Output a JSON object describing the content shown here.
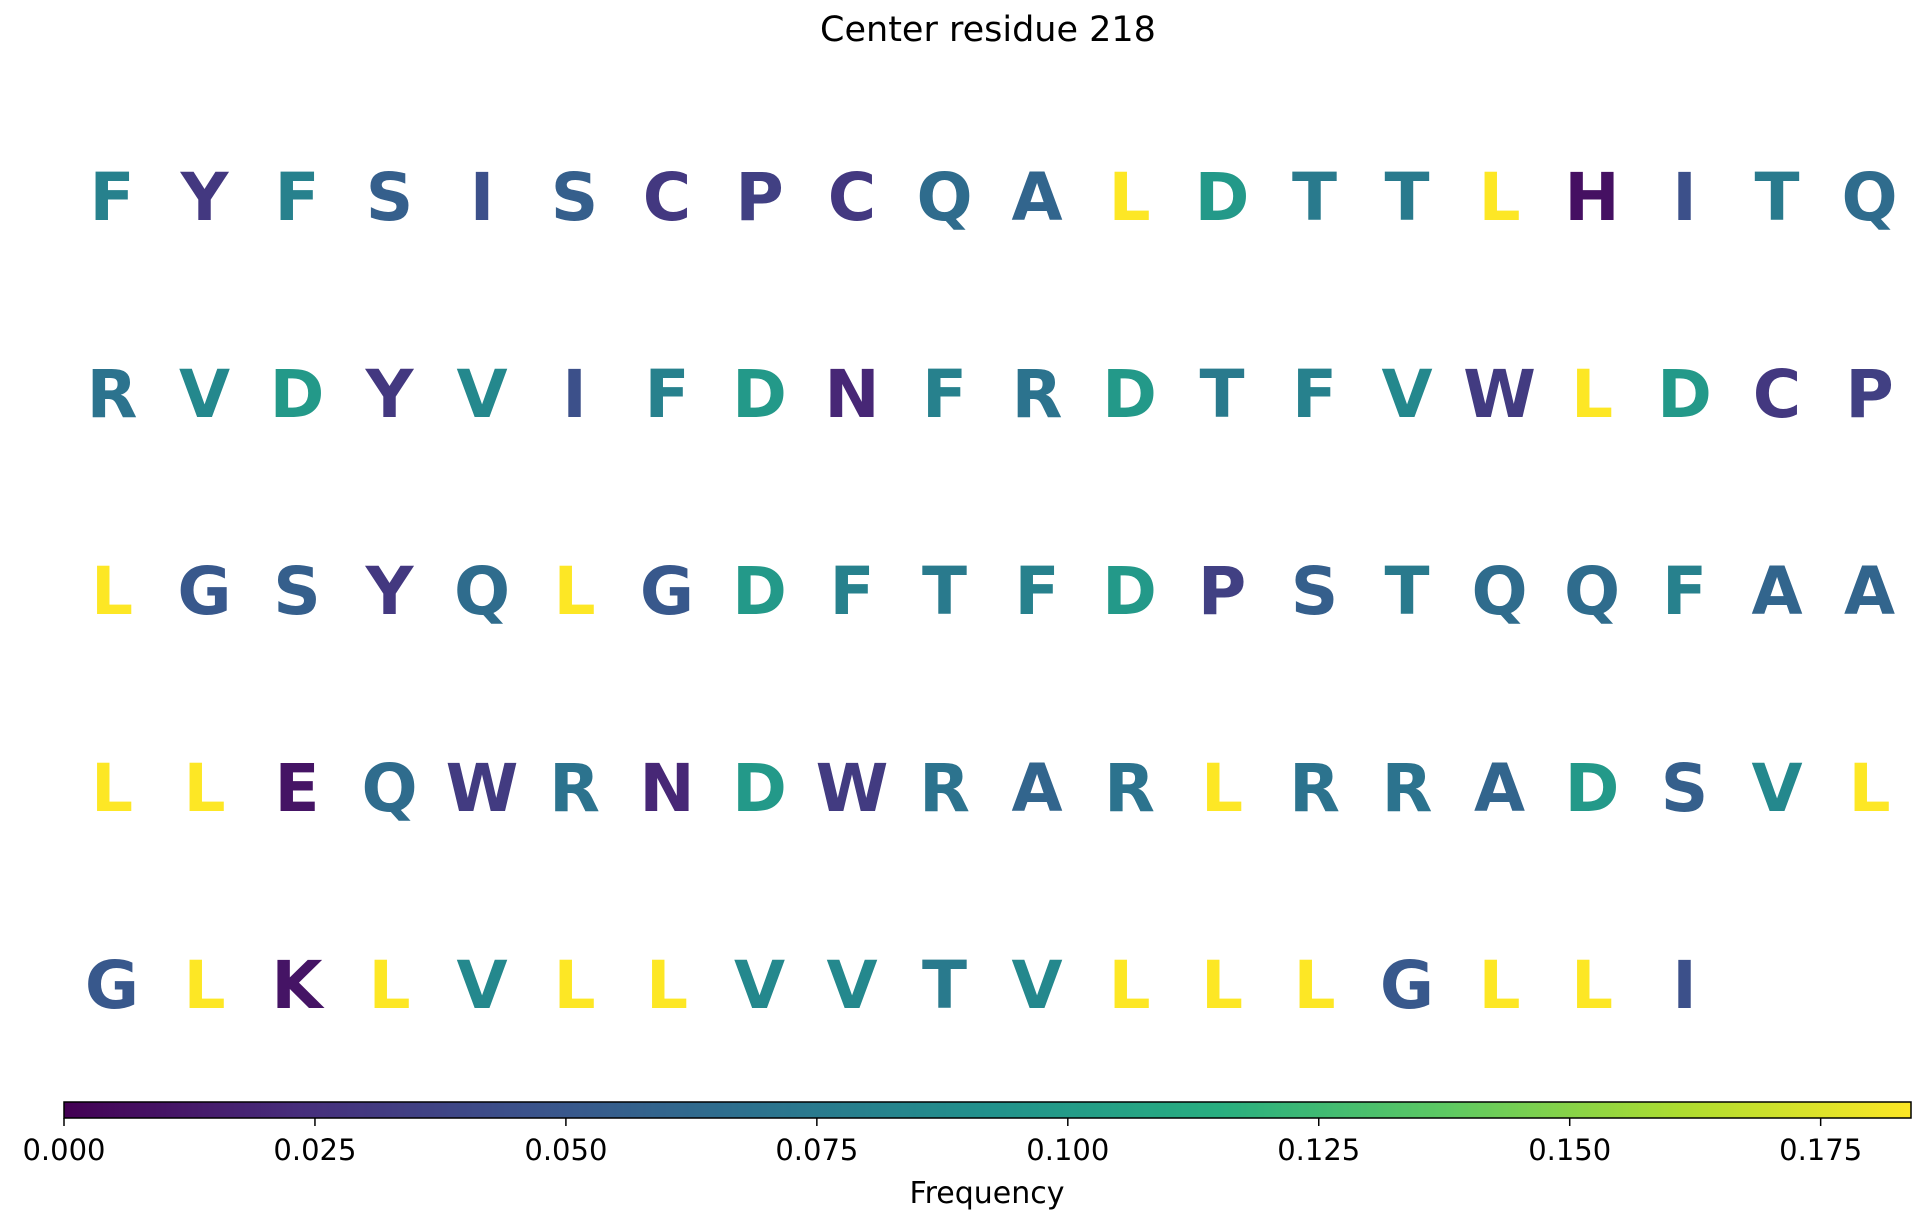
{
  "chart_data": {
    "type": "table",
    "title": "Center residue 218",
    "colormap": "viridis",
    "colorbar": {
      "label": "Frequency",
      "range": [
        0.0,
        0.184
      ],
      "ticks": [
        "0.000",
        "0.025",
        "0.050",
        "0.075",
        "0.100",
        "0.125",
        "0.150",
        "0.175"
      ],
      "tick_values": [
        0.0,
        0.025,
        0.05,
        0.075,
        0.1,
        0.125,
        0.15,
        0.175
      ]
    },
    "residue_frequency": {
      "L": 0.184,
      "D": 0.098,
      "V": 0.085,
      "T": 0.075,
      "F": 0.08,
      "R": 0.07,
      "Q": 0.065,
      "A": 0.06,
      "S": 0.055,
      "G": 0.05,
      "I": 0.045,
      "P": 0.035,
      "W": 0.032,
      "C": 0.03,
      "Y": 0.03,
      "N": 0.02,
      "K": 0.01,
      "E": 0.01,
      "H": 0.008
    },
    "rows": [
      [
        "F",
        "Y",
        "F",
        "S",
        "I",
        "S",
        "C",
        "P",
        "C",
        "Q",
        "A",
        "L",
        "D",
        "T",
        "T",
        "L",
        "H",
        "I",
        "T",
        "Q"
      ],
      [
        "R",
        "V",
        "D",
        "Y",
        "V",
        "I",
        "F",
        "D",
        "N",
        "F",
        "R",
        "D",
        "T",
        "F",
        "V",
        "W",
        "L",
        "D",
        "C",
        "P"
      ],
      [
        "L",
        "G",
        "S",
        "Y",
        "Q",
        "L",
        "G",
        "D",
        "F",
        "T",
        "F",
        "D",
        "P",
        "S",
        "T",
        "Q",
        "Q",
        "F",
        "A",
        "A"
      ],
      [
        "L",
        "L",
        "E",
        "Q",
        "W",
        "R",
        "N",
        "D",
        "W",
        "R",
        "A",
        "R",
        "L",
        "R",
        "R",
        "A",
        "D",
        "S",
        "V",
        "L"
      ],
      [
        "G",
        "L",
        "K",
        "L",
        "V",
        "L",
        "L",
        "V",
        "V",
        "T",
        "V",
        "L",
        "L",
        "L",
        "G",
        "L",
        "L",
        "I"
      ]
    ]
  }
}
